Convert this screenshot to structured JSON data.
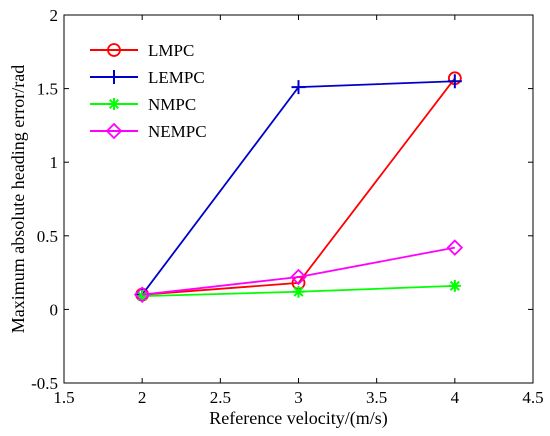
{
  "chart_data": {
    "type": "line",
    "xlabel": "Reference velocity/(m/s)",
    "ylabel": "Maximum absolute heading error/rad",
    "xlim": [
      1.5,
      4.5
    ],
    "ylim": [
      -0.5,
      2
    ],
    "xticks": [
      1.5,
      2,
      2.5,
      3,
      3.5,
      4,
      4.5
    ],
    "yticks": [
      -0.5,
      0,
      0.5,
      1,
      1.5,
      2
    ],
    "xtick_labels": [
      "1.5",
      "2",
      "2.5",
      "3",
      "3.5",
      "4",
      "4.5"
    ],
    "ytick_labels": [
      "-0.5",
      "0",
      "0.5",
      "1",
      "1.5",
      "2"
    ],
    "grid": false,
    "legend_position": "top-left",
    "series": [
      {
        "name": "LMPC",
        "color": "#ff0000",
        "marker": "circle",
        "x": [
          2,
          3,
          4
        ],
        "y": [
          0.1,
          0.18,
          1.57
        ]
      },
      {
        "name": "LEMPC",
        "color": "#0000cc",
        "marker": "plus",
        "x": [
          2,
          3,
          4
        ],
        "y": [
          0.1,
          1.51,
          1.55
        ]
      },
      {
        "name": "NMPC",
        "color": "#00ff00",
        "marker": "asterisk",
        "x": [
          2,
          3,
          4
        ],
        "y": [
          0.09,
          0.12,
          0.16
        ]
      },
      {
        "name": "NEMPC",
        "color": "#ff00ff",
        "marker": "diamond",
        "x": [
          2,
          3,
          4
        ],
        "y": [
          0.1,
          0.22,
          0.42
        ]
      }
    ]
  }
}
